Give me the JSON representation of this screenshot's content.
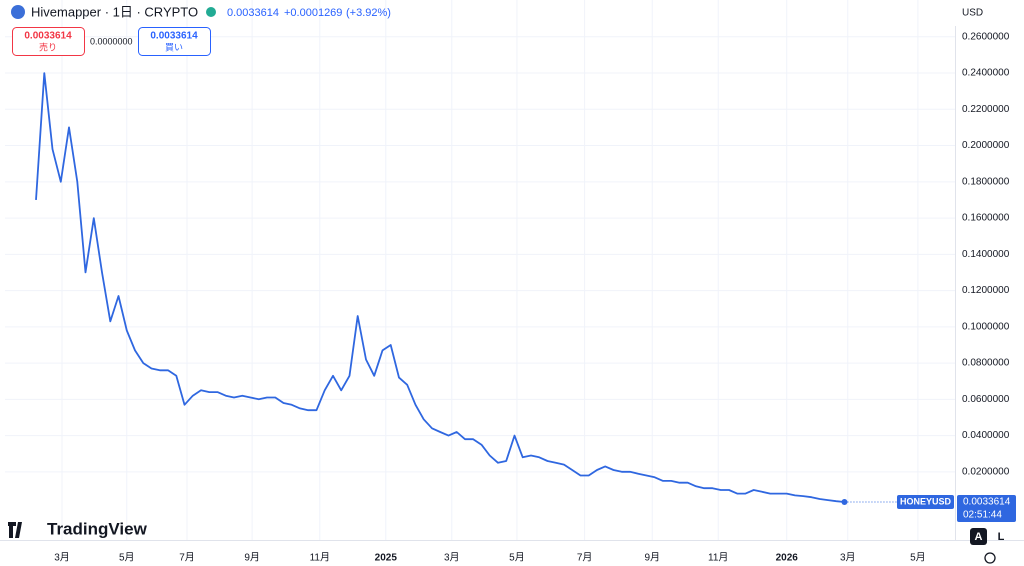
{
  "header": {
    "title": "Hivemapper · 1日 · CRYPTO",
    "price": "0.0033614",
    "change": "+0.0001269",
    "change_pct": "(+3.92%)",
    "sell_price": "0.0033614",
    "sell_label": "売り",
    "spread": "0.0000000",
    "buy_price": "0.0033614",
    "buy_label": "買い"
  },
  "currency": "USD",
  "price_tag": {
    "symbol": "HONEYUSD",
    "countdown": "02:51:44"
  },
  "logo": "TradingView",
  "buttons": {
    "auto": "A",
    "log": "L"
  },
  "chart_data": {
    "type": "line",
    "series": [
      {
        "name": "HONEYUSD",
        "color": "#2f67e0",
        "values": [
          0.17,
          0.24,
          0.198,
          0.18,
          0.21,
          0.18,
          0.13,
          0.16,
          0.13,
          0.103,
          0.117,
          0.098,
          0.087,
          0.08,
          0.077,
          0.076,
          0.076,
          0.073,
          0.057,
          0.062,
          0.065,
          0.064,
          0.064,
          0.062,
          0.061,
          0.062,
          0.061,
          0.06,
          0.061,
          0.061,
          0.058,
          0.057,
          0.055,
          0.054,
          0.054,
          0.065,
          0.073,
          0.065,
          0.073,
          0.106,
          0.082,
          0.073,
          0.087,
          0.09,
          0.072,
          0.068,
          0.057,
          0.049,
          0.044,
          0.042,
          0.04,
          0.042,
          0.038,
          0.038,
          0.035,
          0.029,
          0.025,
          0.026,
          0.04,
          0.028,
          0.029,
          0.028,
          0.026,
          0.025,
          0.024,
          0.021,
          0.018,
          0.018,
          0.021,
          0.023,
          0.021,
          0.02,
          0.02,
          0.019,
          0.018,
          0.017,
          0.015,
          0.015,
          0.014,
          0.014,
          0.012,
          0.011,
          0.011,
          0.01,
          0.01,
          0.008,
          0.008,
          0.01,
          0.009,
          0.008,
          0.008,
          0.008,
          0.007,
          0.0066,
          0.006,
          0.005,
          0.0044,
          0.0038,
          0.0033614
        ]
      }
    ],
    "xlim": [
      -3.76,
      111.4
    ],
    "xticks": [
      {
        "value": 3.15,
        "label": "3月"
      },
      {
        "value": 11.0,
        "label": "5月"
      },
      {
        "value": 18.3,
        "label": "7月"
      },
      {
        "value": 26.2,
        "label": "9月"
      },
      {
        "value": 34.4,
        "label": "11月"
      },
      {
        "value": 42.4,
        "label": "2025"
      },
      {
        "value": 50.4,
        "label": "3月"
      },
      {
        "value": 58.3,
        "label": "5月"
      },
      {
        "value": 66.5,
        "label": "7月"
      },
      {
        "value": 74.7,
        "label": "9月"
      },
      {
        "value": 82.7,
        "label": "11月"
      },
      {
        "value": 91.0,
        "label": "2026"
      },
      {
        "value": 98.4,
        "label": "3月"
      },
      {
        "value": 106.9,
        "label": "5月"
      }
    ],
    "ylim": [
      -0.0176,
      0.2803
    ],
    "yticks": [
      {
        "value": 0.02,
        "label": "0.0200000"
      },
      {
        "value": 0.04,
        "label": "0.0400000"
      },
      {
        "value": 0.06,
        "label": "0.0600000"
      },
      {
        "value": 0.08,
        "label": "0.0800000"
      },
      {
        "value": 0.1,
        "label": "0.1000000"
      },
      {
        "value": 0.12,
        "label": "0.1200000"
      },
      {
        "value": 0.14,
        "label": "0.1400000"
      },
      {
        "value": 0.16,
        "label": "0.1600000"
      },
      {
        "value": 0.18,
        "label": "0.1800000"
      },
      {
        "value": 0.2,
        "label": "0.2000000"
      },
      {
        "value": 0.22,
        "label": "0.2200000"
      },
      {
        "value": 0.24,
        "label": "0.2400000"
      },
      {
        "value": 0.26,
        "label": "0.2600000"
      }
    ],
    "grid": true
  }
}
